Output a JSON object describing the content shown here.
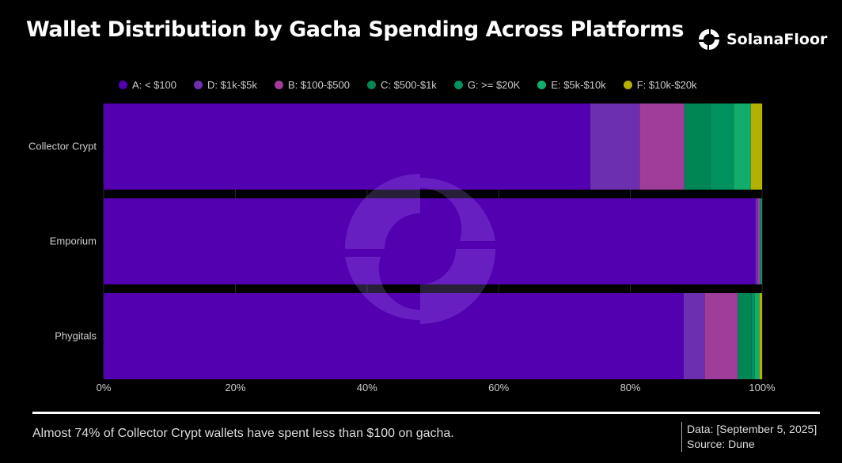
{
  "header": {
    "title": "Wallet Distribution by Gacha Spending Across Platforms",
    "brand": "SolanaFloor"
  },
  "chart_data": {
    "type": "bar",
    "orientation": "horizontal-stacked-100",
    "title": "Wallet Distribution by Gacha Spending Across Platforms",
    "categories": [
      "Collector Crypt",
      "Emporium",
      "Phygitals"
    ],
    "series": [
      {
        "name": "A: < $100",
        "color": "#5200b0",
        "values": [
          73.9,
          99.0,
          88.1
        ]
      },
      {
        "name": "D: $1k-$5k",
        "color": "#6c2fb0",
        "values": [
          7.5,
          0.4,
          3.2
        ]
      },
      {
        "name": "B: $100-$500",
        "color": "#a03d9a",
        "values": [
          6.8,
          0.3,
          5.0
        ]
      },
      {
        "name": "C: $500-$1k",
        "color": "#008655",
        "values": [
          3.9,
          0.1,
          2.1
        ]
      },
      {
        "name": "G: >= $20K",
        "color": "#01915e",
        "values": [
          3.6,
          0.1,
          0.5
        ]
      },
      {
        "name": "E: $5k-$10k",
        "color": "#12ad6a",
        "values": [
          2.6,
          0.1,
          0.7
        ]
      },
      {
        "name": "F: $10k-$20k",
        "color": "#b3b000",
        "values": [
          1.7,
          0.0,
          0.4
        ]
      }
    ],
    "xticks": [
      "0%",
      "20%",
      "40%",
      "60%",
      "80%",
      "100%"
    ],
    "xlim": [
      0,
      100
    ],
    "legend": "top"
  },
  "footer": {
    "note": "Almost 74% of Collector Crypt wallets have spent less than $100 on gacha.",
    "date": "Data: [September 5, 2025]",
    "source": "Source: Dune"
  }
}
